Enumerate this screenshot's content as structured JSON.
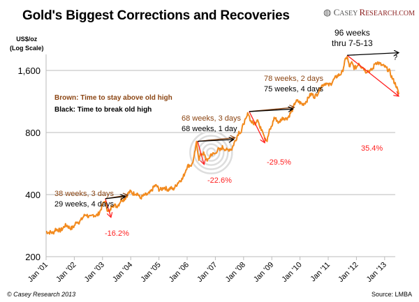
{
  "chart_data": {
    "type": "line",
    "title": "Gold's Biggest Corrections and Recoveries",
    "ylabel": "US$/oz (Log Scale)",
    "ylabel_lines": [
      "US$/oz",
      "(Log Scale)"
    ],
    "yscale": "log",
    "ylim": [
      200,
      2000
    ],
    "yticks": [
      200,
      400,
      800,
      1600
    ],
    "ytick_labels": [
      "200",
      "400",
      "800",
      "1,600"
    ],
    "xlim": [
      "2001-01",
      "2013-07"
    ],
    "xtick_labels": [
      "Jan '01",
      "Jan '02",
      "Jan '03",
      "Jan '04",
      "Jan '05",
      "Jan '06",
      "Jan '07",
      "Jan '08",
      "Jan '09",
      "Jan '10",
      "Jan '11",
      "Jan '12",
      "Jan '13"
    ],
    "grid": "horizontal",
    "series_color": "#f28a1e",
    "series": [
      {
        "start": "2001-01",
        "frequency": "monthly",
        "values": [
          265,
          262,
          263,
          260,
          272,
          270,
          268,
          273,
          283,
          283,
          276,
          275,
          282,
          296,
          294,
          302,
          314,
          321,
          313,
          310,
          319,
          317,
          319,
          333,
          356,
          375,
          340,
          328,
          355,
          356,
          351,
          360,
          379,
          378,
          389,
          407,
          414,
          405,
          406,
          404,
          384,
          392,
          398,
          400,
          406,
          420,
          439,
          442,
          424,
          423,
          434,
          429,
          422,
          431,
          424,
          438,
          456,
          470,
          476,
          510,
          549,
          555,
          557,
          610,
          715,
          596,
          633,
          632,
          598,
          585,
          627,
          629,
          631,
          665,
          655,
          679,
          667,
          655,
          665,
          665,
          712,
          754,
          806,
          803,
          889,
          922,
          1000,
          909,
          888,
          889,
          939,
          839,
          829,
          760,
          730,
          816,
          858,
          943,
          924,
          890,
          928,
          945,
          934,
          949,
          996,
          1043,
          1127,
          1134,
          1117,
          1095,
          1113,
          1148,
          1205,
          1232,
          1193,
          1215,
          1270,
          1342,
          1370,
          1391,
          1356,
          1372,
          1424,
          1473,
          1510,
          1529,
          1572,
          1756,
          1880,
          1665,
          1739,
          1652,
          1656,
          1742,
          1673,
          1650,
          1585,
          1596,
          1594,
          1630,
          1744,
          1747,
          1721,
          1688,
          1671,
          1627,
          1593,
          1487,
          1414,
          1343,
          1225
        ]
      }
    ],
    "legend": {
      "brown": "Brown: Time to stay above old high",
      "black": "Black: Time to break old high"
    },
    "colors": {
      "brown": "#8b4513",
      "black": "#000000",
      "red": "#ff2020"
    },
    "corrections": [
      {
        "peak": [
          2003.1,
          382
        ],
        "trough": [
          2003.3,
          310
        ],
        "break": [
          2003.8,
          392
        ],
        "stay": [
          2003.9,
          398
        ],
        "brown_label": "38 weeks, 3 days",
        "black_label": "29 weeks, 4 days",
        "pct_label": "-16.2%"
      },
      {
        "peak": [
          2006.37,
          725
        ],
        "trough": [
          2006.6,
          560
        ],
        "break": [
          2007.65,
          740
        ],
        "stay": [
          2007.7,
          755
        ],
        "brown_label": "68 weeks, 3 days",
        "black_label": "68 weeks, 1 day",
        "pct_label": "-22.6%"
      },
      {
        "peak": [
          2008.2,
          1011
        ],
        "trough": [
          2008.75,
          713
        ],
        "break": [
          2009.75,
          1040
        ],
        "stay": [
          2009.8,
          1060
        ],
        "brown_label": "78 weeks, 2 days",
        "black_label": "75 weeks, 4 days",
        "pct_label": "-29.5%"
      },
      {
        "peak": [
          2011.67,
          1895
        ],
        "trough": [
          2013.5,
          1200
        ],
        "break": [
          2013.5,
          1950
        ],
        "stay": null,
        "brown_label": "",
        "black_label": "96 weeks\nthru 7-5-13",
        "pct_label": "35.4%",
        "question": "?"
      }
    ]
  },
  "header": {
    "logo": "CASEY RESEARCH.COM",
    "logo_a": "C",
    "logo_b": "ASEY ",
    "logo_c": "R",
    "logo_d": "ESEARCH.COM"
  },
  "footer": {
    "copyright": "© Casey Research 2013",
    "source": "Source: LMBA"
  }
}
